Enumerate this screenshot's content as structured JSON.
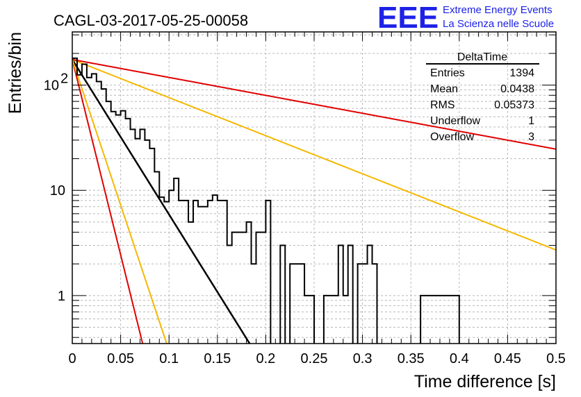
{
  "header": {
    "title": "CAGL-03-2017-05-25-00058",
    "logo_text": "EEE",
    "brand_line1": "Extreme Energy Events",
    "brand_line2": "La Scienza nelle Scuole",
    "brand_color": "#1d22e6"
  },
  "stats": {
    "name": "DeltaTime",
    "rows": [
      {
        "label": "Entries",
        "value": "1394"
      },
      {
        "label": "Mean",
        "value": "0.0438"
      },
      {
        "label": "RMS",
        "value": "0.05373"
      },
      {
        "label": "Underflow",
        "value": "1"
      },
      {
        "label": "Overflow",
        "value": "3"
      }
    ]
  },
  "chart_data": {
    "type": "line",
    "xlabel": "Time difference [s]",
    "ylabel": "Entries/bin",
    "xlim": [
      0,
      0.5
    ],
    "ylim": [
      0.35,
      320
    ],
    "yscale": "log",
    "grid": true,
    "x_ticks": [
      {
        "value": 0,
        "label": "0"
      },
      {
        "value": 0.05,
        "label": "0.05"
      },
      {
        "value": 0.1,
        "label": "0.1"
      },
      {
        "value": 0.15,
        "label": "0.15"
      },
      {
        "value": 0.2,
        "label": "0.2"
      },
      {
        "value": 0.25,
        "label": "0.25"
      },
      {
        "value": 0.3,
        "label": "0.3"
      },
      {
        "value": 0.35,
        "label": "0.35"
      },
      {
        "value": 0.4,
        "label": "0.4"
      },
      {
        "value": 0.45,
        "label": "0.45"
      },
      {
        "value": 0.5,
        "label": "0.5"
      }
    ],
    "y_ticks": [
      {
        "value": 1,
        "label": "1"
      },
      {
        "value": 10,
        "label": "10"
      },
      {
        "value": 100,
        "label": "10",
        "exponent": "2"
      }
    ],
    "histogram": {
      "name": "DeltaTime",
      "bin_width": 0.005,
      "color": "#000000",
      "values": [
        180,
        125,
        158,
        118,
        128,
        108,
        92,
        70,
        56,
        52,
        57,
        48,
        38,
        31,
        38,
        30,
        25,
        15,
        8.6,
        7.8,
        10,
        13,
        8,
        8,
        5,
        8,
        7,
        7,
        8,
        9,
        8,
        8,
        3,
        4,
        4,
        4,
        5,
        2,
        4,
        4,
        8,
        0.3,
        0.3,
        3,
        0.3,
        2,
        2,
        2,
        1,
        1,
        0.3,
        0.3,
        1,
        1,
        1,
        3,
        1,
        3,
        0.3,
        2,
        2,
        3,
        2,
        0.3,
        0.3,
        0.3,
        0.3,
        0.3,
        0.3,
        0.3,
        0.3,
        0.3,
        1,
        1,
        1,
        1,
        1,
        1,
        1,
        1,
        0.3,
        0.3,
        0.3,
        0.3,
        0.3,
        0.3,
        0.3,
        0.3,
        0.3,
        0.3,
        0.3,
        0.3,
        0.3,
        0.3,
        0.3,
        0.3,
        0.3,
        0.3,
        0.3,
        0.3
      ]
    },
    "series": [
      {
        "color": "#000000",
        "A": 175,
        "tau": 0.0295,
        "width": 2.5
      },
      {
        "color": "#e10000",
        "A": 175,
        "tau": 0.0117,
        "width": 2
      },
      {
        "color": "#f5b800",
        "A": 175,
        "tau": 0.0157,
        "width": 2
      },
      {
        "color": "#f5b800",
        "A": 175,
        "tau": 0.12,
        "width": 2
      },
      {
        "color": "#e10000",
        "A": 175,
        "tau": 0.255,
        "width": 2
      }
    ]
  }
}
